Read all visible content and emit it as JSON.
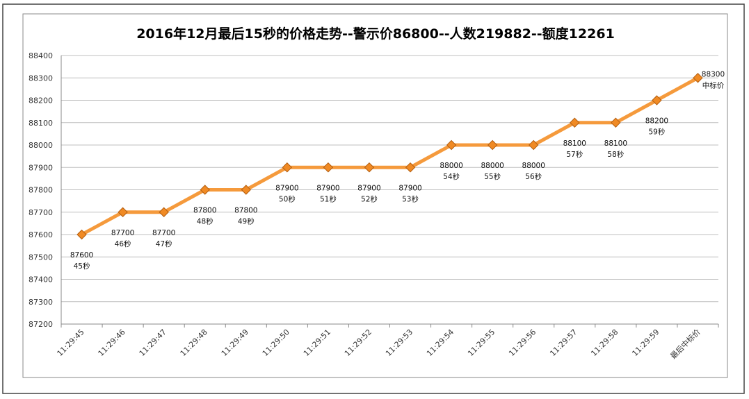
{
  "chart_data": {
    "type": "line",
    "title": "2016年12月最后15秒的价格走势--警示价86800--人数219882--额度12261",
    "xlabel": "",
    "ylabel": "",
    "ylim": [
      87200,
      88400
    ],
    "ytick_step": 100,
    "grid": true,
    "legend": "none",
    "categories": [
      "11:29:45",
      "11:29:46",
      "11:29:47",
      "11:29:48",
      "11:29:49",
      "11:29:50",
      "11:29:51",
      "11:29:52",
      "11:29:53",
      "11:29:54",
      "11:29:55",
      "11:29:56",
      "11:29:57",
      "11:29:58",
      "11:29:59",
      "最后中标价"
    ],
    "series": [
      {
        "values": [
          87600,
          87700,
          87700,
          87800,
          87800,
          87900,
          87900,
          87900,
          87900,
          88000,
          88000,
          88000,
          88100,
          88100,
          88200,
          88300
        ],
        "label_text": [
          "87600",
          "87700",
          "87700",
          "87800",
          "87800",
          "87900",
          "87900",
          "87900",
          "87900",
          "88000",
          "88000",
          "88000",
          "88100",
          "88100",
          "88200",
          "88300"
        ],
        "label_sub": [
          "45秒",
          "46秒",
          "47秒",
          "48秒",
          "49秒",
          "50秒",
          "51秒",
          "52秒",
          "53秒",
          "54秒",
          "55秒",
          "56秒",
          "57秒",
          "58秒",
          "59秒",
          "中标价"
        ]
      }
    ],
    "colors": {
      "line": "#f59a3c",
      "marker": "#f08a24",
      "marker_edge": "#b35e10",
      "grid": "#bfbfbf"
    }
  }
}
